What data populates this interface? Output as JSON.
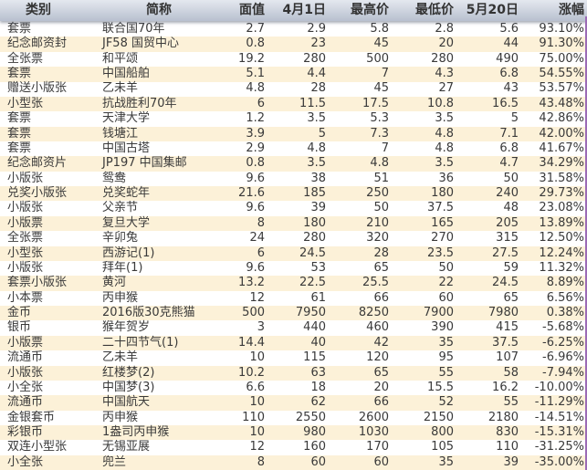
{
  "headers": [
    "类别",
    "简称",
    "面值",
    "4月1日",
    "最高价",
    "最低价",
    "5月20日",
    "涨幅"
  ],
  "colors": {
    "header": "#c8cfdb",
    "alt_row": "#fcf1d8",
    "edge": "#9b6bb5"
  },
  "rows": [
    [
      "套票",
      "联合国70年",
      "2.7",
      "2.9",
      "5.8",
      "2.8",
      "5.6",
      "93.10%"
    ],
    [
      "纪念邮资封",
      "JF58 国贸中心",
      "0.8",
      "23",
      "45",
      "20",
      "44",
      "91.30%"
    ],
    [
      "全张票",
      "和平颂",
      "19.2",
      "280",
      "500",
      "280",
      "490",
      "75.00%"
    ],
    [
      "套票",
      "中国船舶",
      "5.1",
      "4.4",
      "7",
      "4.3",
      "6.8",
      "54.55%"
    ],
    [
      "赠送小版张",
      "乙未羊",
      "4.8",
      "28",
      "45",
      "27",
      "43",
      "53.57%"
    ],
    [
      "小型张",
      "抗战胜利70年",
      "6",
      "11.5",
      "17.5",
      "10.8",
      "16.5",
      "43.48%"
    ],
    [
      "套票",
      "天津大学",
      "1.2",
      "3.5",
      "5.3",
      "3.5",
      "5",
      "42.86%"
    ],
    [
      "套票",
      "钱塘江",
      "3.9",
      "5",
      "7.3",
      "4.8",
      "7.1",
      "42.00%"
    ],
    [
      "套票",
      "中国古塔",
      "2.9",
      "4.8",
      "7",
      "4.8",
      "6.8",
      "41.67%"
    ],
    [
      "纪念邮资片",
      "JP197 中国集邮",
      "0.8",
      "3.5",
      "4.8",
      "3.5",
      "4.7",
      "34.29%"
    ],
    [
      "小版张",
      "鸳鸯",
      "9.6",
      "38",
      "51",
      "36",
      "50",
      "31.58%"
    ],
    [
      "兑奖小版张",
      "兑奖蛇年",
      "21.6",
      "185",
      "250",
      "180",
      "240",
      "29.73%"
    ],
    [
      "小版张",
      "父亲节",
      "9.6",
      "39",
      "50",
      "37.5",
      "48",
      "23.08%"
    ],
    [
      "小版票",
      "复旦大学",
      "8",
      "180",
      "210",
      "165",
      "205",
      "13.89%"
    ],
    [
      "全张票",
      "辛卯兔",
      "24",
      "280",
      "320",
      "270",
      "315",
      "12.50%"
    ],
    [
      "小型张",
      "西游记(1)",
      "6",
      "24.5",
      "28",
      "23.5",
      "27.5",
      "12.24%"
    ],
    [
      "小版张",
      "拜年(1)",
      "9.6",
      "53",
      "65",
      "50",
      "59",
      "11.32%"
    ],
    [
      "套票小版张",
      "黄河",
      "13.2",
      "22.5",
      "25.5",
      "22",
      "24.5",
      "8.89%"
    ],
    [
      "小本票",
      "丙申猴",
      "12",
      "61",
      "66",
      "60",
      "65",
      "6.56%"
    ],
    [
      "金币",
      "2016版30克熊猫",
      "500",
      "7950",
      "8250",
      "7900",
      "7980",
      "0.38%"
    ],
    [
      "银币",
      "猴年贺岁",
      "3",
      "440",
      "460",
      "390",
      "415",
      "-5.68%"
    ],
    [
      "小版票",
      "二十四节气(1)",
      "14.4",
      "40",
      "42",
      "35",
      "37.5",
      "-6.25%"
    ],
    [
      "流通币",
      "乙未羊",
      "10",
      "115",
      "120",
      "95",
      "107",
      "-6.96%"
    ],
    [
      "小版张",
      "红楼梦(2)",
      "10.2",
      "63",
      "65",
      "55",
      "58",
      "-7.94%"
    ],
    [
      "小全张",
      "中国梦(3)",
      "6.6",
      "18",
      "20",
      "15.5",
      "16.2",
      "-10.00%"
    ],
    [
      "流通币",
      "中国航天",
      "10",
      "62",
      "66",
      "52",
      "55",
      "-11.29%"
    ],
    [
      "金银套币",
      "丙申猴",
      "110",
      "2550",
      "2600",
      "2150",
      "2180",
      "-14.51%"
    ],
    [
      "彩银币",
      "1盎司丙申猴",
      "10",
      "980",
      "1030",
      "800",
      "830",
      "-15.31%"
    ],
    [
      "双连小型张",
      "无锡亚展",
      "12",
      "160",
      "170",
      "105",
      "110",
      "-31.25%"
    ],
    [
      "小全张",
      "兜兰",
      "8",
      "60",
      "60",
      "35",
      "39",
      "-35.00%"
    ]
  ]
}
